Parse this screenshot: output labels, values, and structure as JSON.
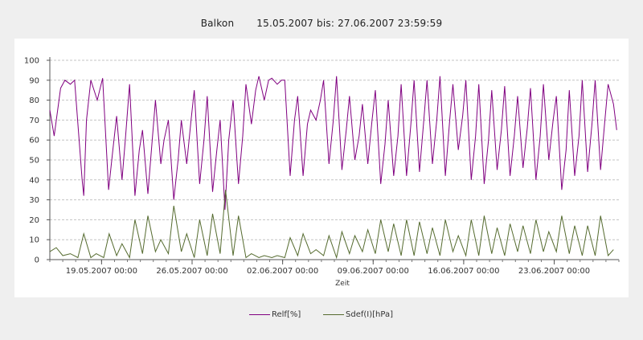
{
  "title": {
    "location": "Balkon",
    "range": "15.05.2007 bis: 27.06.2007 23:59:59"
  },
  "chart_data": {
    "type": "line",
    "xlabel": "Zeit",
    "ylabel": "",
    "ylim": [
      0,
      100
    ],
    "yticks": [
      0,
      10,
      20,
      30,
      40,
      50,
      60,
      70,
      80,
      90,
      100
    ],
    "xlim": [
      "2007-05-15T00:00",
      "2007-06-28T00:00"
    ],
    "xticks": [
      {
        "date": "2007-05-19T00:00",
        "label": "19.05.2007 00:00"
      },
      {
        "date": "2007-05-26T00:00",
        "label": "26.05.2007 00:00"
      },
      {
        "date": "2007-06-02T00:00",
        "label": "02.06.2007 00:00"
      },
      {
        "date": "2007-06-09T00:00",
        "label": "09.06.2007 00:00"
      },
      {
        "date": "2007-06-16T00:00",
        "label": "16.06.2007 00:00"
      },
      {
        "date": "2007-06-23T00:00",
        "label": "23.06.2007 00:00"
      }
    ],
    "grid": "horizontal dashed",
    "legend_position": "bottom",
    "series": [
      {
        "name": "Relf[%]",
        "color": "#800080",
        "points": [
          [
            "2007-05-15T00:00",
            75
          ],
          [
            "2007-05-15T08:00",
            62
          ],
          [
            "2007-05-15T20:00",
            86
          ],
          [
            "2007-05-16T04:00",
            90
          ],
          [
            "2007-05-16T14:00",
            88
          ],
          [
            "2007-05-16T22:00",
            90
          ],
          [
            "2007-05-17T12:00",
            40
          ],
          [
            "2007-05-17T15:00",
            32
          ],
          [
            "2007-05-17T20:00",
            70
          ],
          [
            "2007-05-18T04:00",
            90
          ],
          [
            "2007-05-18T16:00",
            80
          ],
          [
            "2007-05-19T02:00",
            91
          ],
          [
            "2007-05-19T13:00",
            35
          ],
          [
            "2007-05-19T21:00",
            55
          ],
          [
            "2007-05-20T04:00",
            72
          ],
          [
            "2007-05-20T14:00",
            40
          ],
          [
            "2007-05-20T20:00",
            60
          ],
          [
            "2007-05-21T04:00",
            88
          ],
          [
            "2007-05-21T14:00",
            32
          ],
          [
            "2007-05-21T22:00",
            55
          ],
          [
            "2007-05-22T04:00",
            65
          ],
          [
            "2007-05-22T14:00",
            33
          ],
          [
            "2007-05-22T22:00",
            60
          ],
          [
            "2007-05-23T04:00",
            80
          ],
          [
            "2007-05-23T14:00",
            48
          ],
          [
            "2007-05-23T20:00",
            60
          ],
          [
            "2007-05-24T04:00",
            70
          ],
          [
            "2007-05-24T14:00",
            30
          ],
          [
            "2007-05-24T22:00",
            50
          ],
          [
            "2007-05-25T04:00",
            70
          ],
          [
            "2007-05-25T14:00",
            48
          ],
          [
            "2007-05-25T22:00",
            70
          ],
          [
            "2007-05-26T04:00",
            85
          ],
          [
            "2007-05-26T14:00",
            38
          ],
          [
            "2007-05-26T22:00",
            60
          ],
          [
            "2007-05-27T04:00",
            82
          ],
          [
            "2007-05-27T14:00",
            34
          ],
          [
            "2007-05-27T22:00",
            55
          ],
          [
            "2007-05-28T04:00",
            70
          ],
          [
            "2007-05-28T13:00",
            25
          ],
          [
            "2007-05-28T20:00",
            60
          ],
          [
            "2007-05-29T04:00",
            80
          ],
          [
            "2007-05-29T14:00",
            38
          ],
          [
            "2007-05-29T22:00",
            62
          ],
          [
            "2007-05-30T04:00",
            88
          ],
          [
            "2007-05-30T14:00",
            68
          ],
          [
            "2007-05-30T22:00",
            85
          ],
          [
            "2007-05-31T04:00",
            92
          ],
          [
            "2007-05-31T14:00",
            80
          ],
          [
            "2007-05-31T22:00",
            90
          ],
          [
            "2007-06-01T04:00",
            91
          ],
          [
            "2007-06-01T14:00",
            88
          ],
          [
            "2007-06-01T22:00",
            90
          ],
          [
            "2007-06-02T04:00",
            90
          ],
          [
            "2007-06-02T14:00",
            42
          ],
          [
            "2007-06-02T22:00",
            70
          ],
          [
            "2007-06-03T04:00",
            82
          ],
          [
            "2007-06-03T14:00",
            42
          ],
          [
            "2007-06-03T22:00",
            68
          ],
          [
            "2007-06-04T04:00",
            75
          ],
          [
            "2007-06-04T14:00",
            70
          ],
          [
            "2007-06-04T22:00",
            80
          ],
          [
            "2007-06-05T04:00",
            90
          ],
          [
            "2007-06-05T14:00",
            48
          ],
          [
            "2007-06-05T22:00",
            70
          ],
          [
            "2007-06-06T04:00",
            92
          ],
          [
            "2007-06-06T14:00",
            45
          ],
          [
            "2007-06-06T22:00",
            65
          ],
          [
            "2007-06-07T04:00",
            82
          ],
          [
            "2007-06-07T14:00",
            50
          ],
          [
            "2007-06-07T22:00",
            62
          ],
          [
            "2007-06-08T04:00",
            78
          ],
          [
            "2007-06-08T14:00",
            48
          ],
          [
            "2007-06-08T22:00",
            70
          ],
          [
            "2007-06-09T04:00",
            85
          ],
          [
            "2007-06-09T14:00",
            38
          ],
          [
            "2007-06-09T22:00",
            58
          ],
          [
            "2007-06-10T04:00",
            80
          ],
          [
            "2007-06-10T14:00",
            42
          ],
          [
            "2007-06-10T22:00",
            62
          ],
          [
            "2007-06-11T04:00",
            88
          ],
          [
            "2007-06-11T14:00",
            42
          ],
          [
            "2007-06-11T22:00",
            68
          ],
          [
            "2007-06-12T04:00",
            90
          ],
          [
            "2007-06-12T14:00",
            44
          ],
          [
            "2007-06-12T22:00",
            70
          ],
          [
            "2007-06-13T04:00",
            90
          ],
          [
            "2007-06-13T14:00",
            48
          ],
          [
            "2007-06-13T22:00",
            70
          ],
          [
            "2007-06-14T04:00",
            92
          ],
          [
            "2007-06-14T14:00",
            42
          ],
          [
            "2007-06-14T22:00",
            70
          ],
          [
            "2007-06-15T04:00",
            88
          ],
          [
            "2007-06-15T14:00",
            55
          ],
          [
            "2007-06-15T22:00",
            72
          ],
          [
            "2007-06-16T04:00",
            90
          ],
          [
            "2007-06-16T14:00",
            40
          ],
          [
            "2007-06-16T22:00",
            62
          ],
          [
            "2007-06-17T04:00",
            88
          ],
          [
            "2007-06-17T14:00",
            38
          ],
          [
            "2007-06-17T22:00",
            60
          ],
          [
            "2007-06-18T04:00",
            85
          ],
          [
            "2007-06-18T14:00",
            45
          ],
          [
            "2007-06-18T22:00",
            65
          ],
          [
            "2007-06-19T04:00",
            87
          ],
          [
            "2007-06-19T14:00",
            42
          ],
          [
            "2007-06-19T22:00",
            62
          ],
          [
            "2007-06-20T04:00",
            82
          ],
          [
            "2007-06-20T14:00",
            46
          ],
          [
            "2007-06-20T22:00",
            66
          ],
          [
            "2007-06-21T04:00",
            86
          ],
          [
            "2007-06-21T14:00",
            40
          ],
          [
            "2007-06-21T22:00",
            62
          ],
          [
            "2007-06-22T04:00",
            88
          ],
          [
            "2007-06-22T14:00",
            50
          ],
          [
            "2007-06-22T22:00",
            70
          ],
          [
            "2007-06-23T04:00",
            82
          ],
          [
            "2007-06-23T14:00",
            35
          ],
          [
            "2007-06-23T22:00",
            55
          ],
          [
            "2007-06-24T04:00",
            85
          ],
          [
            "2007-06-24T14:00",
            42
          ],
          [
            "2007-06-24T22:00",
            62
          ],
          [
            "2007-06-25T04:00",
            90
          ],
          [
            "2007-06-25T14:00",
            44
          ],
          [
            "2007-06-25T22:00",
            68
          ],
          [
            "2007-06-26T04:00",
            90
          ],
          [
            "2007-06-26T14:00",
            45
          ],
          [
            "2007-06-26T22:00",
            70
          ],
          [
            "2007-06-27T04:00",
            88
          ],
          [
            "2007-06-27T14:00",
            78
          ],
          [
            "2007-06-27T20:00",
            65
          ]
        ]
      },
      {
        "name": "Sdef(I)[hPa]",
        "color": "#556b2f",
        "points": [
          [
            "2007-05-15T00:00",
            4
          ],
          [
            "2007-05-15T12:00",
            6
          ],
          [
            "2007-05-16T00:00",
            2
          ],
          [
            "2007-05-16T14:00",
            3
          ],
          [
            "2007-05-17T04:00",
            1
          ],
          [
            "2007-05-17T15:00",
            13
          ],
          [
            "2007-05-18T04:00",
            1
          ],
          [
            "2007-05-18T14:00",
            3
          ],
          [
            "2007-05-19T04:00",
            1
          ],
          [
            "2007-05-19T14:00",
            13
          ],
          [
            "2007-05-20T04:00",
            2
          ],
          [
            "2007-05-20T14:00",
            8
          ],
          [
            "2007-05-21T04:00",
            1
          ],
          [
            "2007-05-21T14:00",
            20
          ],
          [
            "2007-05-22T04:00",
            3
          ],
          [
            "2007-05-22T14:00",
            22
          ],
          [
            "2007-05-23T04:00",
            4
          ],
          [
            "2007-05-23T14:00",
            10
          ],
          [
            "2007-05-24T04:00",
            3
          ],
          [
            "2007-05-24T14:00",
            27
          ],
          [
            "2007-05-25T04:00",
            4
          ],
          [
            "2007-05-25T14:00",
            13
          ],
          [
            "2007-05-26T04:00",
            1
          ],
          [
            "2007-05-26T14:00",
            20
          ],
          [
            "2007-05-27T04:00",
            2
          ],
          [
            "2007-05-27T14:00",
            23
          ],
          [
            "2007-05-28T04:00",
            3
          ],
          [
            "2007-05-28T14:00",
            35
          ],
          [
            "2007-05-29T04:00",
            2
          ],
          [
            "2007-05-29T14:00",
            22
          ],
          [
            "2007-05-30T04:00",
            1
          ],
          [
            "2007-05-30T14:00",
            3
          ],
          [
            "2007-05-31T04:00",
            1
          ],
          [
            "2007-05-31T14:00",
            2
          ],
          [
            "2007-06-01T04:00",
            1
          ],
          [
            "2007-06-01T14:00",
            2
          ],
          [
            "2007-06-02T04:00",
            1
          ],
          [
            "2007-06-02T14:00",
            11
          ],
          [
            "2007-06-03T04:00",
            2
          ],
          [
            "2007-06-03T14:00",
            13
          ],
          [
            "2007-06-04T04:00",
            3
          ],
          [
            "2007-06-04T14:00",
            5
          ],
          [
            "2007-06-05T04:00",
            2
          ],
          [
            "2007-06-05T14:00",
            12
          ],
          [
            "2007-06-06T04:00",
            1
          ],
          [
            "2007-06-06T14:00",
            14
          ],
          [
            "2007-06-07T04:00",
            3
          ],
          [
            "2007-06-07T14:00",
            12
          ],
          [
            "2007-06-08T04:00",
            4
          ],
          [
            "2007-06-08T14:00",
            15
          ],
          [
            "2007-06-09T04:00",
            3
          ],
          [
            "2007-06-09T14:00",
            20
          ],
          [
            "2007-06-10T04:00",
            4
          ],
          [
            "2007-06-10T14:00",
            18
          ],
          [
            "2007-06-11T04:00",
            2
          ],
          [
            "2007-06-11T14:00",
            20
          ],
          [
            "2007-06-12T04:00",
            2
          ],
          [
            "2007-06-12T14:00",
            19
          ],
          [
            "2007-06-13T04:00",
            3
          ],
          [
            "2007-06-13T14:00",
            16
          ],
          [
            "2007-06-14T04:00",
            2
          ],
          [
            "2007-06-14T14:00",
            20
          ],
          [
            "2007-06-15T04:00",
            4
          ],
          [
            "2007-06-15T14:00",
            12
          ],
          [
            "2007-06-16T04:00",
            2
          ],
          [
            "2007-06-16T14:00",
            20
          ],
          [
            "2007-06-17T04:00",
            2
          ],
          [
            "2007-06-17T14:00",
            22
          ],
          [
            "2007-06-18T04:00",
            3
          ],
          [
            "2007-06-18T14:00",
            16
          ],
          [
            "2007-06-19T04:00",
            2
          ],
          [
            "2007-06-19T14:00",
            18
          ],
          [
            "2007-06-20T04:00",
            4
          ],
          [
            "2007-06-20T14:00",
            17
          ],
          [
            "2007-06-21T04:00",
            3
          ],
          [
            "2007-06-21T14:00",
            20
          ],
          [
            "2007-06-22T04:00",
            4
          ],
          [
            "2007-06-22T14:00",
            14
          ],
          [
            "2007-06-23T04:00",
            4
          ],
          [
            "2007-06-23T14:00",
            22
          ],
          [
            "2007-06-24T04:00",
            3
          ],
          [
            "2007-06-24T14:00",
            17
          ],
          [
            "2007-06-25T04:00",
            2
          ],
          [
            "2007-06-25T14:00",
            17
          ],
          [
            "2007-06-26T04:00",
            2
          ],
          [
            "2007-06-26T14:00",
            22
          ],
          [
            "2007-06-27T04:00",
            2
          ],
          [
            "2007-06-27T14:00",
            5
          ]
        ]
      }
    ]
  }
}
